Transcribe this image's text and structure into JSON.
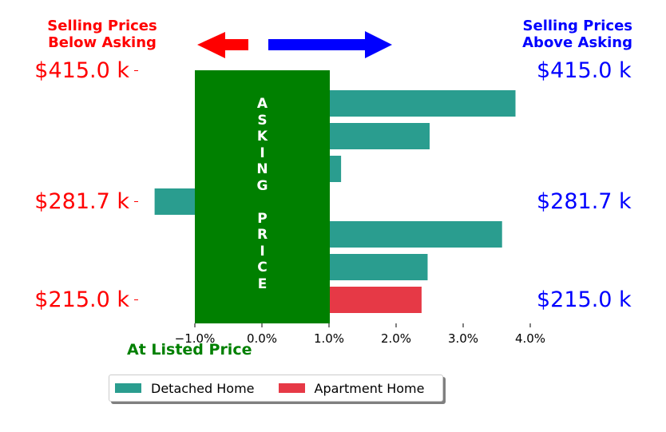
{
  "header": {
    "left_line1": "Selling Prices",
    "left_line2": "Below Asking",
    "right_line1": "Selling Prices",
    "right_line2": "Above Asking"
  },
  "price_labels": {
    "top": "$415.0 k",
    "mid": "$281.7 k",
    "bottom": "$215.0 k"
  },
  "asking_price_letters": [
    "A",
    "S",
    "K",
    "I",
    "N",
    "G",
    "",
    "P",
    "R",
    "I",
    "C",
    "E"
  ],
  "at_listed_label": "At Listed Price",
  "colors": {
    "below_asking": "#ff0000",
    "above_asking": "#0000ff",
    "asking_block": "#008000",
    "detached": "#2a9d8f",
    "apartment": "#e63946"
  },
  "chart_data": {
    "type": "bar",
    "orientation": "horizontal",
    "x_tick_labels": [
      "−1.0%",
      "0.0%",
      "1.0%",
      "2.0%",
      "3.0%",
      "4.0%"
    ],
    "x_ticks": [
      -1.0,
      0.0,
      1.0,
      2.0,
      3.0,
      4.0
    ],
    "xlim": [
      -2.0,
      4.0
    ],
    "y_tick_labels": [
      "$415.0 k",
      "$281.7 k",
      "$215.0 k"
    ],
    "bars": [
      {
        "series": "Detached Home",
        "value": 3.78
      },
      {
        "series": "Detached Home",
        "value": 2.5
      },
      {
        "series": "Detached Home",
        "value": 1.18
      },
      {
        "series": "Detached Home",
        "value": -1.6
      },
      {
        "series": "Detached Home",
        "value": 3.58
      },
      {
        "series": "Detached Home",
        "value": 2.47
      },
      {
        "series": "Apartment Home",
        "value": 2.38
      }
    ],
    "asking_band": [
      -1.0,
      1.0
    ],
    "legend": [
      {
        "name": "Detached Home",
        "color": "#2a9d8f"
      },
      {
        "name": "Apartment Home",
        "color": "#e63946"
      }
    ],
    "legend_position": "bottom",
    "grid": false
  }
}
